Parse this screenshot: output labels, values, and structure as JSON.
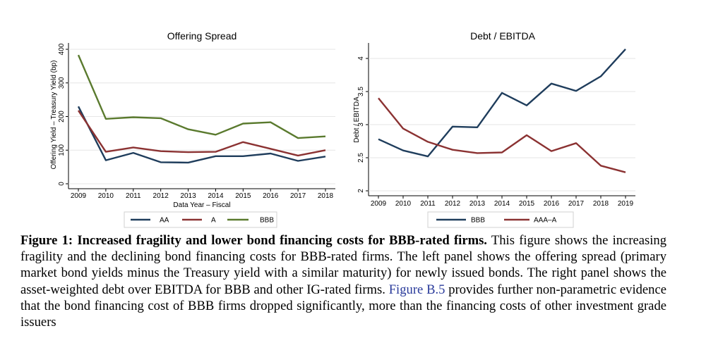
{
  "chart_data": [
    {
      "type": "line",
      "title": "Offering Spread",
      "xlabel": "Data Year – Fiscal",
      "ylabel": "Offering Yield – Treasury Yield (bp)",
      "x": [
        2009,
        2010,
        2011,
        2012,
        2013,
        2014,
        2015,
        2016,
        2017,
        2018
      ],
      "x_ticks": [
        "2009",
        "2010",
        "2011",
        "2012",
        "2013",
        "2014",
        "2015",
        "2016",
        "2017",
        "2018"
      ],
      "y_ticks": [
        "0",
        "100",
        "200",
        "300",
        "400"
      ],
      "ylim": [
        0,
        400
      ],
      "grid": true,
      "legend_position": "bottom",
      "series": [
        {
          "name": "AA",
          "color": "#1f3d5c",
          "values": [
            230,
            70,
            92,
            64,
            63,
            82,
            82,
            90,
            68,
            81
          ]
        },
        {
          "name": "A",
          "color": "#8b3232",
          "values": [
            218,
            95,
            108,
            97,
            94,
            95,
            124,
            104,
            84,
            100
          ]
        },
        {
          "name": "BBB",
          "color": "#5a7a2e",
          "values": [
            383,
            193,
            198,
            195,
            162,
            146,
            179,
            183,
            136,
            141
          ]
        }
      ]
    },
    {
      "type": "line",
      "title": "Debt / EBITDA",
      "xlabel": "",
      "ylabel": "Debt / EBITDA",
      "x": [
        2009,
        2010,
        2011,
        2012,
        2013,
        2014,
        2015,
        2016,
        2017,
        2018,
        2019
      ],
      "x_ticks": [
        "2009",
        "2010",
        "2011",
        "2012",
        "2013",
        "2014",
        "2015",
        "2016",
        "2017",
        "2018",
        "2019"
      ],
      "y_ticks": [
        "2",
        "2.5",
        "3",
        "3.5",
        "4"
      ],
      "ylim": [
        2,
        4
      ],
      "grid": true,
      "legend_position": "bottom",
      "series": [
        {
          "name": "BBB",
          "color": "#1f3d5c",
          "values": [
            2.78,
            2.61,
            2.52,
            2.97,
            2.96,
            3.48,
            3.29,
            3.62,
            3.51,
            3.73,
            4.14
          ]
        },
        {
          "name": "AAA–A",
          "color": "#8b3232",
          "values": [
            3.4,
            2.94,
            2.74,
            2.62,
            2.57,
            2.58,
            2.84,
            2.6,
            2.72,
            2.38,
            2.28
          ]
        }
      ]
    }
  ],
  "caption": {
    "label": "Figure 1:",
    "heading": "Increased fragility and lower bond financing costs for BBB-rated firms.",
    "text_before_ref": "This figure shows the increasing fragility and the declining bond financing costs for BBB-rated firms. The left panel shows the offering spread (primary market bond yields minus the Treasury yield with a similar maturity) for newly issued bonds. The right panel shows the asset-weighted debt over EBITDA for BBB and other IG-rated firms.",
    "ref": "Figure B.5",
    "text_after_ref": "provides further non-parametric evidence that the bond financing cost of BBB firms dropped significantly, more than the financing costs of other investment grade issuers"
  }
}
